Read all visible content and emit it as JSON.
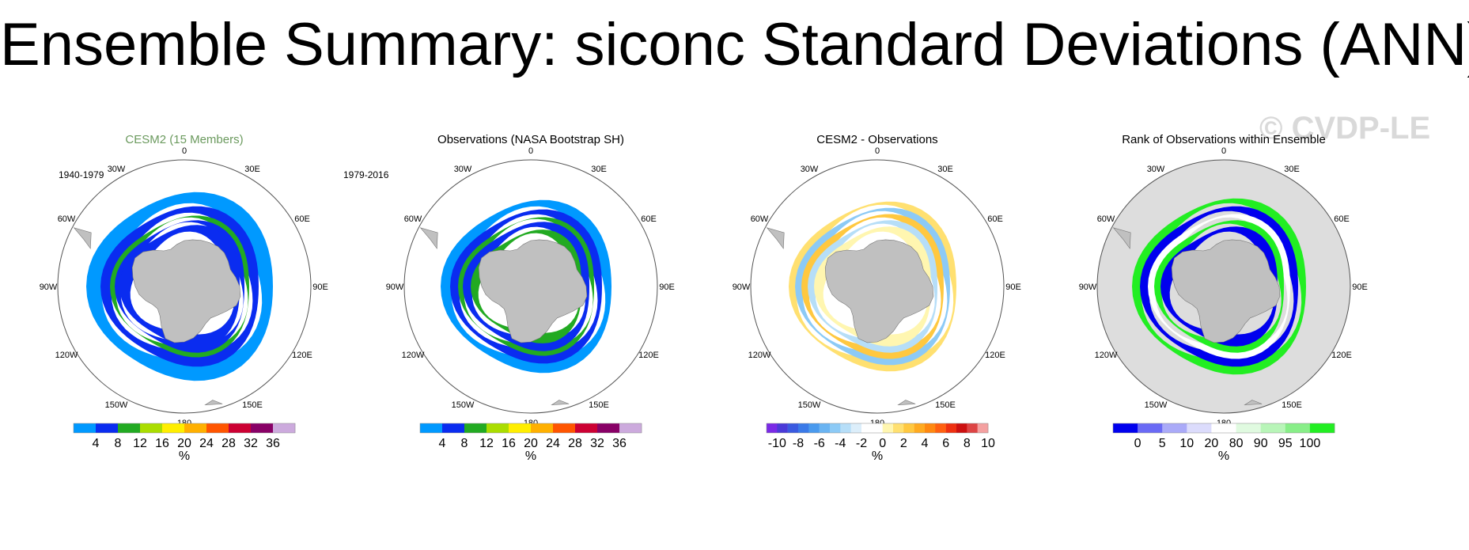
{
  "title": "Ensemble Summary: siconc Standard Deviations (ANN)",
  "watermark": "© CVDP-LE",
  "lon_labels": [
    "0",
    "30E",
    "60E",
    "90E",
    "120E",
    "150E",
    "180",
    "150W",
    "120W",
    "90W",
    "60W",
    "30W"
  ],
  "chart_data": [
    {
      "type": "heatmap",
      "title": "CESM2 (15 Members)",
      "title_color": "#6b9a5e",
      "years": "1940-1979",
      "projection": "south-polar-stereographic",
      "field": "pattern",
      "colorbar": {
        "unit": "%",
        "colors": [
          "#0099ff",
          "#0a2cf0",
          "#22aa22",
          "#aadd00",
          "#ffee00",
          "#ffb000",
          "#ff5500",
          "#cc0033",
          "#880066",
          "#ccaadd"
        ],
        "tick_labels": [
          "4",
          "8",
          "12",
          "16",
          "20",
          "24",
          "28",
          "32",
          "36"
        ]
      }
    },
    {
      "type": "heatmap",
      "title": "Observations (NASA Bootstrap SH)",
      "title_color": "#000000",
      "years": "1979-2016",
      "projection": "south-polar-stereographic",
      "field": "pattern",
      "colorbar": {
        "unit": "%",
        "colors": [
          "#0099ff",
          "#0a2cf0",
          "#22aa22",
          "#aadd00",
          "#ffee00",
          "#ffb000",
          "#ff5500",
          "#cc0033",
          "#880066",
          "#ccaadd"
        ],
        "tick_labels": [
          "4",
          "8",
          "12",
          "16",
          "20",
          "24",
          "28",
          "32",
          "36"
        ]
      }
    },
    {
      "type": "heatmap",
      "title": "CESM2 - Observations",
      "title_color": "#000000",
      "years": "",
      "projection": "south-polar-stereographic",
      "field": "difference",
      "colorbar": {
        "unit": "%",
        "colors": [
          "#7a2ae6",
          "#4a3ad8",
          "#3a5ae0",
          "#3a7ae8",
          "#4a9aee",
          "#6ab4f2",
          "#8ccaf6",
          "#b6def8",
          "#dceefa",
          "#ffffff",
          "#ffffff",
          "#fff6b0",
          "#ffe070",
          "#ffc840",
          "#ffaa20",
          "#ff8810",
          "#ff6010",
          "#ee3010",
          "#cc1010",
          "#dd4444",
          "#f4a0a0"
        ],
        "tick_labels": [
          "-10",
          "-8",
          "-6",
          "-4",
          "-2",
          "0",
          "2",
          "4",
          "6",
          "8",
          "10"
        ]
      }
    },
    {
      "type": "heatmap",
      "title": "Rank of Observations within Ensemble",
      "title_color": "#000000",
      "years": "",
      "projection": "south-polar-stereographic",
      "field": "rank",
      "colorbar": {
        "unit": "%",
        "colors": [
          "#0000ee",
          "#6a6af5",
          "#aaaaf8",
          "#dcdcfc",
          "#ffffff",
          "#e0fae0",
          "#b8f5b8",
          "#88ee88",
          "#22ee22"
        ],
        "tick_labels": [
          "0",
          "5",
          "10",
          "20",
          "80",
          "90",
          "95",
          "100"
        ]
      }
    }
  ]
}
